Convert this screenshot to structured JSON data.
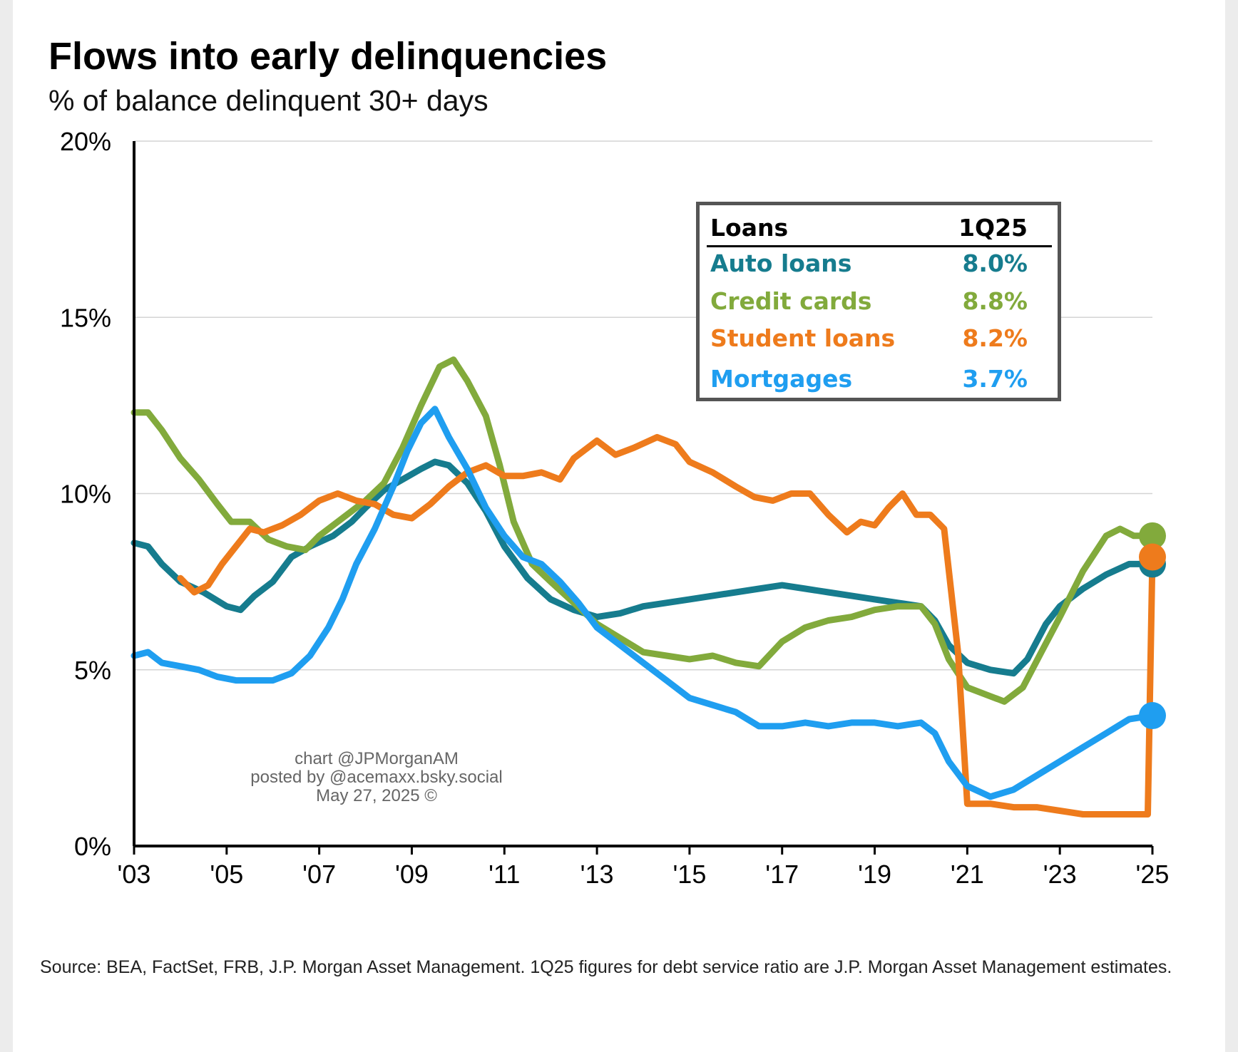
{
  "header": {
    "title": "Flows into early delinquencies",
    "subtitle": "% of balance delinquent 30+ days"
  },
  "colors": {
    "auto_loans": "#167c8e",
    "credit_cards": "#82aa3c",
    "student_loans": "#ee7b1c",
    "mortgages": "#1f9ef0",
    "grid": "#d4d4d4",
    "axis": "#000000"
  },
  "legend": {
    "header_left": "Loans",
    "header_right": "1Q25",
    "rows": [
      {
        "label": "Auto loans",
        "value": "8.0%"
      },
      {
        "label": "Credit cards",
        "value": "8.8%"
      },
      {
        "label": "Student loans",
        "value": "8.2%"
      },
      {
        "label": "Mortgages",
        "value": "3.7%"
      }
    ]
  },
  "watermark": {
    "line1": "chart @JPMorganAM",
    "line2": "posted by @acemaxx.bsky.social",
    "line3": "May 27, 2025 ©"
  },
  "source": "Source: BEA, FactSet, FRB, J.P. Morgan Asset Management. 1Q25 figures for debt service ratio are J.P. Morgan Asset Management estimates.",
  "chart_data": {
    "type": "line",
    "title": "Flows into early delinquencies",
    "ylabel": "% of balance delinquent 30+ days",
    "xlim": [
      2003,
      2025
    ],
    "ylim": [
      0,
      20
    ],
    "yticks": [
      0,
      5,
      10,
      15,
      20
    ],
    "ytick_labels": [
      "0%",
      "5%",
      "10%",
      "15%",
      "20%"
    ],
    "xticks": [
      2003,
      2005,
      2007,
      2009,
      2011,
      2013,
      2015,
      2017,
      2019,
      2021,
      2023,
      2025
    ],
    "xtick_labels": [
      "'03",
      "'05",
      "'07",
      "'09",
      "'11",
      "'13",
      "'15",
      "'17",
      "'19",
      "'21",
      "'23",
      "'25"
    ],
    "grid": true,
    "legend_position": "top-right",
    "series": [
      {
        "name": "Auto loans",
        "color_key": "auto_loans",
        "end_marker": true,
        "points": [
          [
            2003.0,
            8.6
          ],
          [
            2003.3,
            8.5
          ],
          [
            2003.6,
            8.0
          ],
          [
            2004.0,
            7.5
          ],
          [
            2004.5,
            7.2
          ],
          [
            2005.0,
            6.8
          ],
          [
            2005.3,
            6.7
          ],
          [
            2005.6,
            7.1
          ],
          [
            2006.0,
            7.5
          ],
          [
            2006.4,
            8.2
          ],
          [
            2006.8,
            8.5
          ],
          [
            2007.3,
            8.8
          ],
          [
            2007.7,
            9.2
          ],
          [
            2008.0,
            9.6
          ],
          [
            2008.4,
            10.1
          ],
          [
            2008.8,
            10.4
          ],
          [
            2009.2,
            10.7
          ],
          [
            2009.5,
            10.9
          ],
          [
            2009.8,
            10.8
          ],
          [
            2010.2,
            10.3
          ],
          [
            2010.6,
            9.5
          ],
          [
            2011.0,
            8.5
          ],
          [
            2011.5,
            7.6
          ],
          [
            2012.0,
            7.0
          ],
          [
            2012.5,
            6.7
          ],
          [
            2013.0,
            6.5
          ],
          [
            2013.5,
            6.6
          ],
          [
            2014.0,
            6.8
          ],
          [
            2014.5,
            6.9
          ],
          [
            2015.0,
            7.0
          ],
          [
            2015.5,
            7.1
          ],
          [
            2016.0,
            7.2
          ],
          [
            2016.5,
            7.3
          ],
          [
            2017.0,
            7.4
          ],
          [
            2017.5,
            7.3
          ],
          [
            2018.0,
            7.2
          ],
          [
            2018.5,
            7.1
          ],
          [
            2019.0,
            7.0
          ],
          [
            2019.5,
            6.9
          ],
          [
            2020.0,
            6.8
          ],
          [
            2020.3,
            6.4
          ],
          [
            2020.6,
            5.7
          ],
          [
            2021.0,
            5.2
          ],
          [
            2021.5,
            5.0
          ],
          [
            2022.0,
            4.9
          ],
          [
            2022.3,
            5.3
          ],
          [
            2022.7,
            6.3
          ],
          [
            2023.0,
            6.8
          ],
          [
            2023.5,
            7.3
          ],
          [
            2024.0,
            7.7
          ],
          [
            2024.5,
            8.0
          ],
          [
            2025.0,
            8.0
          ]
        ]
      },
      {
        "name": "Credit cards",
        "color_key": "credit_cards",
        "end_marker": true,
        "points": [
          [
            2003.0,
            12.3
          ],
          [
            2003.3,
            12.3
          ],
          [
            2003.6,
            11.8
          ],
          [
            2004.0,
            11.0
          ],
          [
            2004.4,
            10.4
          ],
          [
            2004.8,
            9.7
          ],
          [
            2005.1,
            9.2
          ],
          [
            2005.5,
            9.2
          ],
          [
            2005.9,
            8.7
          ],
          [
            2006.3,
            8.5
          ],
          [
            2006.7,
            8.4
          ],
          [
            2007.0,
            8.8
          ],
          [
            2007.5,
            9.3
          ],
          [
            2008.0,
            9.8
          ],
          [
            2008.4,
            10.3
          ],
          [
            2008.8,
            11.3
          ],
          [
            2009.2,
            12.5
          ],
          [
            2009.6,
            13.6
          ],
          [
            2009.9,
            13.8
          ],
          [
            2010.2,
            13.2
          ],
          [
            2010.6,
            12.2
          ],
          [
            2010.9,
            10.8
          ],
          [
            2011.2,
            9.2
          ],
          [
            2011.6,
            8.0
          ],
          [
            2012.0,
            7.5
          ],
          [
            2012.5,
            6.9
          ],
          [
            2013.0,
            6.3
          ],
          [
            2013.5,
            5.9
          ],
          [
            2014.0,
            5.5
          ],
          [
            2014.5,
            5.4
          ],
          [
            2015.0,
            5.3
          ],
          [
            2015.5,
            5.4
          ],
          [
            2016.0,
            5.2
          ],
          [
            2016.5,
            5.1
          ],
          [
            2017.0,
            5.8
          ],
          [
            2017.5,
            6.2
          ],
          [
            2018.0,
            6.4
          ],
          [
            2018.5,
            6.5
          ],
          [
            2019.0,
            6.7
          ],
          [
            2019.5,
            6.8
          ],
          [
            2020.0,
            6.8
          ],
          [
            2020.3,
            6.3
          ],
          [
            2020.6,
            5.3
          ],
          [
            2021.0,
            4.5
          ],
          [
            2021.4,
            4.3
          ],
          [
            2021.8,
            4.1
          ],
          [
            2022.2,
            4.5
          ],
          [
            2022.6,
            5.5
          ],
          [
            2023.0,
            6.5
          ],
          [
            2023.5,
            7.8
          ],
          [
            2024.0,
            8.8
          ],
          [
            2024.3,
            9.0
          ],
          [
            2024.6,
            8.8
          ],
          [
            2025.0,
            8.8
          ]
        ]
      },
      {
        "name": "Student loans",
        "color_key": "student_loans",
        "end_marker": true,
        "points": [
          [
            2004.0,
            7.6
          ],
          [
            2004.3,
            7.2
          ],
          [
            2004.6,
            7.4
          ],
          [
            2004.9,
            8.0
          ],
          [
            2005.2,
            8.5
          ],
          [
            2005.5,
            9.0
          ],
          [
            2005.8,
            8.9
          ],
          [
            2006.2,
            9.1
          ],
          [
            2006.6,
            9.4
          ],
          [
            2007.0,
            9.8
          ],
          [
            2007.4,
            10.0
          ],
          [
            2007.8,
            9.8
          ],
          [
            2008.2,
            9.7
          ],
          [
            2008.6,
            9.4
          ],
          [
            2009.0,
            9.3
          ],
          [
            2009.4,
            9.7
          ],
          [
            2009.8,
            10.2
          ],
          [
            2010.2,
            10.6
          ],
          [
            2010.6,
            10.8
          ],
          [
            2011.0,
            10.5
          ],
          [
            2011.4,
            10.5
          ],
          [
            2011.8,
            10.6
          ],
          [
            2012.2,
            10.4
          ],
          [
            2012.5,
            11.0
          ],
          [
            2013.0,
            11.5
          ],
          [
            2013.4,
            11.1
          ],
          [
            2013.8,
            11.3
          ],
          [
            2014.3,
            11.6
          ],
          [
            2014.7,
            11.4
          ],
          [
            2015.0,
            10.9
          ],
          [
            2015.5,
            10.6
          ],
          [
            2016.0,
            10.2
          ],
          [
            2016.4,
            9.9
          ],
          [
            2016.8,
            9.8
          ],
          [
            2017.2,
            10.0
          ],
          [
            2017.6,
            10.0
          ],
          [
            2018.0,
            9.4
          ],
          [
            2018.4,
            8.9
          ],
          [
            2018.7,
            9.2
          ],
          [
            2019.0,
            9.1
          ],
          [
            2019.3,
            9.6
          ],
          [
            2019.6,
            10.0
          ],
          [
            2019.9,
            9.4
          ],
          [
            2020.2,
            9.4
          ],
          [
            2020.5,
            9.0
          ],
          [
            2020.8,
            5.5
          ],
          [
            2021.0,
            1.2
          ],
          [
            2021.5,
            1.2
          ],
          [
            2022.0,
            1.1
          ],
          [
            2022.5,
            1.1
          ],
          [
            2023.0,
            1.0
          ],
          [
            2023.5,
            0.9
          ],
          [
            2024.0,
            0.9
          ],
          [
            2024.5,
            0.9
          ],
          [
            2024.9,
            0.9
          ],
          [
            2025.0,
            8.2
          ]
        ]
      },
      {
        "name": "Mortgages",
        "color_key": "mortgages",
        "end_marker": true,
        "points": [
          [
            2003.0,
            5.4
          ],
          [
            2003.3,
            5.5
          ],
          [
            2003.6,
            5.2
          ],
          [
            2004.0,
            5.1
          ],
          [
            2004.4,
            5.0
          ],
          [
            2004.8,
            4.8
          ],
          [
            2005.2,
            4.7
          ],
          [
            2005.6,
            4.7
          ],
          [
            2006.0,
            4.7
          ],
          [
            2006.4,
            4.9
          ],
          [
            2006.8,
            5.4
          ],
          [
            2007.2,
            6.2
          ],
          [
            2007.5,
            7.0
          ],
          [
            2007.8,
            8.0
          ],
          [
            2008.2,
            9.0
          ],
          [
            2008.6,
            10.2
          ],
          [
            2008.9,
            11.2
          ],
          [
            2009.2,
            12.0
          ],
          [
            2009.5,
            12.4
          ],
          [
            2009.8,
            11.6
          ],
          [
            2010.2,
            10.7
          ],
          [
            2010.6,
            9.6
          ],
          [
            2011.0,
            8.8
          ],
          [
            2011.4,
            8.2
          ],
          [
            2011.8,
            8.0
          ],
          [
            2012.2,
            7.5
          ],
          [
            2012.6,
            6.9
          ],
          [
            2013.0,
            6.2
          ],
          [
            2013.5,
            5.7
          ],
          [
            2014.0,
            5.2
          ],
          [
            2014.5,
            4.7
          ],
          [
            2015.0,
            4.2
          ],
          [
            2015.5,
            4.0
          ],
          [
            2016.0,
            3.8
          ],
          [
            2016.5,
            3.4
          ],
          [
            2017.0,
            3.4
          ],
          [
            2017.5,
            3.5
          ],
          [
            2018.0,
            3.4
          ],
          [
            2018.5,
            3.5
          ],
          [
            2019.0,
            3.5
          ],
          [
            2019.5,
            3.4
          ],
          [
            2020.0,
            3.5
          ],
          [
            2020.3,
            3.2
          ],
          [
            2020.6,
            2.4
          ],
          [
            2021.0,
            1.7
          ],
          [
            2021.5,
            1.4
          ],
          [
            2022.0,
            1.6
          ],
          [
            2022.5,
            2.0
          ],
          [
            2023.0,
            2.4
          ],
          [
            2023.5,
            2.8
          ],
          [
            2024.0,
            3.2
          ],
          [
            2024.5,
            3.6
          ],
          [
            2025.0,
            3.7
          ]
        ]
      }
    ]
  }
}
